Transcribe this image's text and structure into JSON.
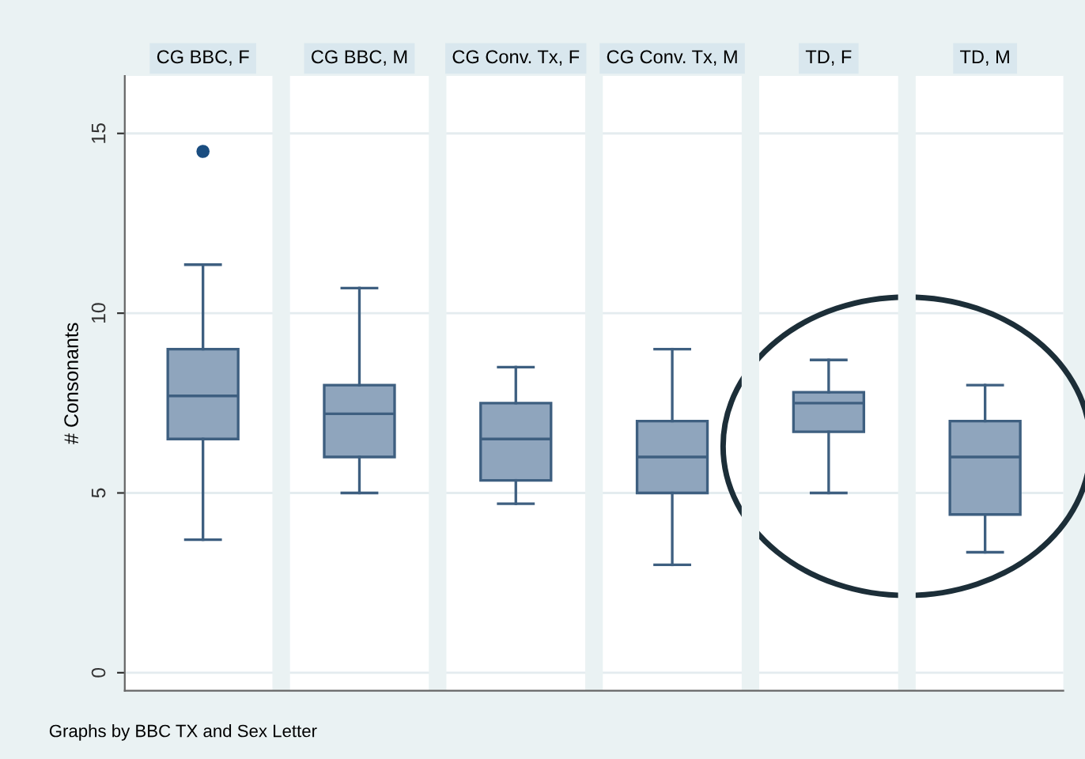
{
  "chart_data": {
    "type": "box",
    "ylabel": "# Consonants",
    "categories": [
      "CG BBC, F",
      "CG BBC, M",
      "CG Conv. Tx, F",
      "CG Conv. Tx, M",
      "TD, F",
      "TD, M"
    ],
    "boxes": [
      {
        "low": 3.7,
        "q1": 6.5,
        "median": 7.7,
        "q3": 9,
        "high": 11.35,
        "outliers": [
          14.5
        ]
      },
      {
        "low": 5,
        "q1": 6,
        "median": 7.2,
        "q3": 8,
        "high": 10.7
      },
      {
        "low": 4.7,
        "q1": 5.35,
        "median": 6.5,
        "q3": 7.5,
        "high": 8.5
      },
      {
        "low": 3,
        "q1": 5,
        "median": 6,
        "q3": 7,
        "high": 9
      },
      {
        "low": 5,
        "q1": 6.7,
        "median": 7.5,
        "q3": 7.8,
        "high": 8.7
      },
      {
        "low": 3.35,
        "q1": 4.4,
        "median": 6,
        "q3": 7,
        "high": 8
      }
    ],
    "color": "#8fa5bd",
    "ylim": [
      -0.5,
      16.6
    ],
    "yticks": [
      0,
      5,
      10,
      15
    ],
    "grid": "y",
    "annotations": [
      "Graphs by BBC TX and Sex Letter"
    ]
  }
}
